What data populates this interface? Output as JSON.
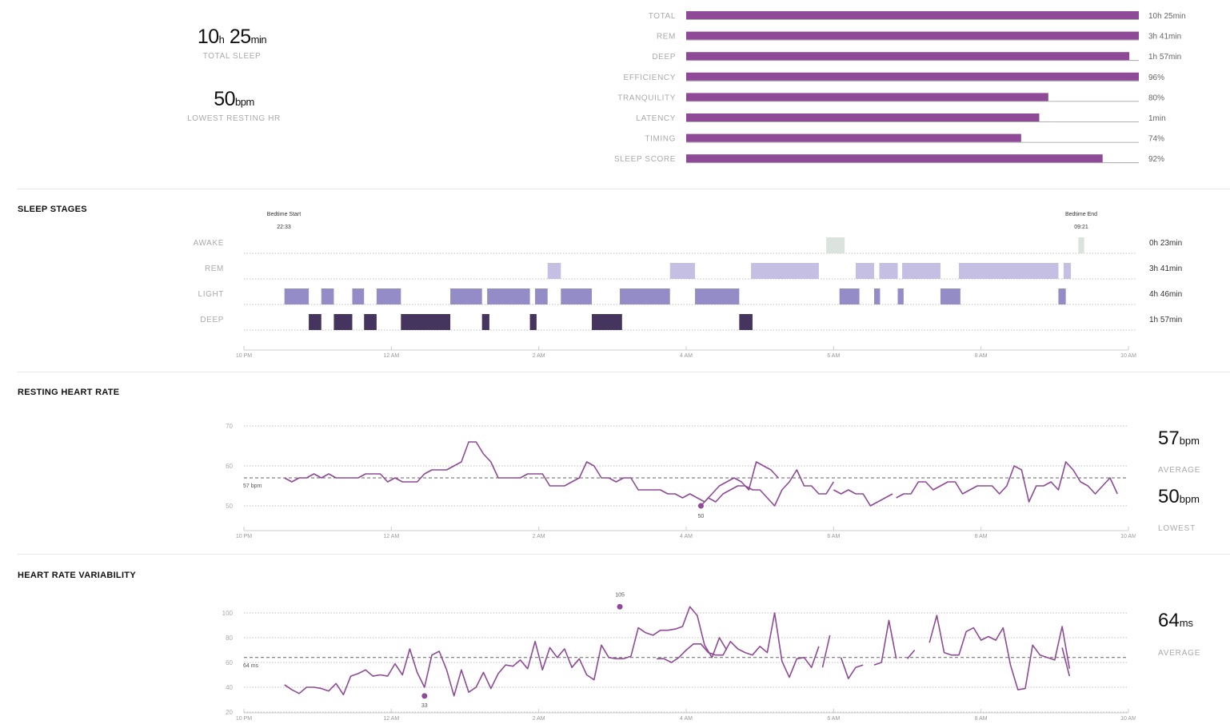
{
  "summary": {
    "total_sleep": {
      "h": "10",
      "h_unit": "h",
      "m": "25",
      "m_unit": "min",
      "label": "TOTAL SLEEP"
    },
    "lowest_hr": {
      "value": "50",
      "unit": "bpm",
      "label": "LOWEST RESTING HR"
    }
  },
  "metrics": [
    {
      "label": "TOTAL",
      "value": "10h 25min",
      "fraction": 1.0
    },
    {
      "label": "REM",
      "value": "3h 41min",
      "fraction": 1.0
    },
    {
      "label": "DEEP",
      "value": "1h 57min",
      "fraction": 0.979
    },
    {
      "label": "EFFICIENCY",
      "value": "96%",
      "fraction": 1.0
    },
    {
      "label": "TRANQUILITY",
      "value": "80%",
      "fraction": 0.8
    },
    {
      "label": "LATENCY",
      "value": "1min",
      "fraction": 0.78
    },
    {
      "label": "TIMING",
      "value": "74%",
      "fraction": 0.74
    },
    {
      "label": "SLEEP SCORE",
      "value": "92%",
      "fraction": 0.92
    }
  ],
  "colors": {
    "accent": "#8e4a96",
    "awake": "#dbe3de",
    "rem": "#c5c0e3",
    "light": "#948cc6",
    "deep": "#45355e",
    "grid": "#bbb",
    "muted": "#aaa"
  },
  "sleep_stages": {
    "title": "SLEEP STAGES",
    "bedtime_start_label": "Bedtime Start",
    "bedtime_start": "22:33",
    "bedtime_end_label": "Bedtime End",
    "bedtime_end": "09:21",
    "stages": [
      {
        "name": "AWAKE",
        "duration": "0h 23min"
      },
      {
        "name": "REM",
        "duration": "3h 41min"
      },
      {
        "name": "LIGHT",
        "duration": "4h 46min"
      },
      {
        "name": "DEEP",
        "duration": "1h 57min"
      }
    ]
  },
  "time_ticks": [
    "10 PM",
    "12 AM",
    "2 AM",
    "4 AM",
    "6 AM",
    "8 AM",
    "10 AM"
  ],
  "resting_hr": {
    "title": "RESTING HEART RATE",
    "avg_value": "57",
    "avg_unit": "bpm",
    "avg_label": "AVERAGE",
    "low_value": "50",
    "low_unit": "bpm",
    "low_label": "LOWEST",
    "avg_line_label": "57 bpm",
    "min_label": "50"
  },
  "hrv": {
    "title": "HEART RATE VARIABILITY",
    "avg_value": "64",
    "avg_unit": "ms",
    "avg_label": "AVERAGE",
    "avg_line_label": "64 ms",
    "max_label": "105",
    "min_label": "33"
  },
  "chart_data": [
    {
      "type": "bar",
      "title": "SLEEP STAGES",
      "x_unit": "hours after 22:00",
      "x_range": [
        0,
        12
      ],
      "categories": [
        "AWAKE",
        "REM",
        "LIGHT",
        "DEEP"
      ],
      "segments": {
        "AWAKE": [
          [
            7.9,
            8.15
          ],
          [
            11.32,
            11.4
          ]
        ],
        "REM": [
          [
            4.12,
            4.3
          ],
          [
            5.78,
            6.12
          ],
          [
            6.88,
            7.8
          ],
          [
            8.3,
            8.55
          ],
          [
            8.62,
            8.87
          ],
          [
            8.93,
            9.45
          ],
          [
            9.7,
            11.05
          ],
          [
            11.12,
            11.22
          ]
        ],
        "LIGHT": [
          [
            0.55,
            0.88
          ],
          [
            1.05,
            1.22
          ],
          [
            1.47,
            1.63
          ],
          [
            1.8,
            2.13
          ],
          [
            2.8,
            3.23
          ],
          [
            3.3,
            3.88
          ],
          [
            3.95,
            4.12
          ],
          [
            4.3,
            4.72
          ],
          [
            5.1,
            5.78
          ],
          [
            6.12,
            6.72
          ],
          [
            8.08,
            8.35
          ],
          [
            8.55,
            8.63
          ],
          [
            8.87,
            8.95
          ],
          [
            9.45,
            9.72
          ],
          [
            11.05,
            11.15
          ]
        ],
        "DEEP": [
          [
            0.88,
            1.05
          ],
          [
            1.22,
            1.47
          ],
          [
            1.63,
            1.8
          ],
          [
            2.13,
            2.8
          ],
          [
            3.23,
            3.33
          ],
          [
            3.88,
            3.97
          ],
          [
            4.72,
            5.13
          ],
          [
            6.72,
            6.9
          ]
        ]
      },
      "xticks": [
        "10 PM",
        "12 AM",
        "2 AM",
        "4 AM",
        "6 AM",
        "8 AM",
        "10 AM"
      ]
    },
    {
      "type": "line",
      "title": "RESTING HEART RATE",
      "x_unit": "hours after 22:00",
      "x_range": [
        0,
        12
      ],
      "ylim": [
        50,
        70
      ],
      "yticks": [
        50,
        60,
        70
      ],
      "average": 57,
      "min_point": {
        "x": 6.2,
        "y": 50
      },
      "segments": [
        {
          "x_start": 0.55,
          "step": 0.1,
          "values": [
            57,
            56,
            57,
            57,
            58,
            57,
            58,
            57,
            57,
            57,
            57,
            58,
            58,
            58,
            56,
            57,
            56,
            56,
            56,
            58,
            59,
            59,
            59,
            60,
            61,
            66,
            66,
            63,
            61,
            57,
            57,
            57,
            57,
            58,
            58,
            58,
            55,
            55,
            55,
            56,
            57,
            61,
            60,
            57,
            57,
            56,
            57,
            57,
            54,
            54,
            54,
            54,
            53,
            53,
            52,
            53,
            52,
            51,
            53,
            55,
            56,
            57,
            56,
            54,
            61,
            60,
            59,
            57
          ]
        },
        {
          "x_start": 6.2,
          "step": 0.1,
          "values": [
            50,
            52,
            51,
            53,
            54,
            55,
            55,
            54,
            54,
            52,
            50,
            54,
            56,
            59,
            55,
            55,
            53,
            53,
            56
          ]
        },
        {
          "x_start": 8.0,
          "step": 0.1,
          "values": [
            54,
            53,
            54,
            53,
            53,
            50,
            51,
            52,
            53
          ]
        },
        {
          "x_start": 8.85,
          "step": 0.1,
          "values": [
            52,
            53,
            53,
            56,
            56,
            54,
            55,
            56,
            56,
            53,
            54,
            55,
            55,
            55,
            53,
            55,
            60,
            59,
            51,
            55,
            55,
            56,
            54,
            61,
            59,
            56,
            55,
            53,
            55,
            57,
            53
          ]
        }
      ],
      "xticks": [
        "10 PM",
        "12 AM",
        "2 AM",
        "4 AM",
        "6 AM",
        "8 AM",
        "10 AM"
      ]
    },
    {
      "type": "line",
      "title": "HEART RATE VARIABILITY",
      "x_unit": "hours after 22:00",
      "x_range": [
        0,
        12
      ],
      "ylim": [
        20,
        100
      ],
      "yticks": [
        20,
        40,
        60,
        80,
        100
      ],
      "average": 64,
      "max_point": {
        "x": 5.1,
        "y": 105
      },
      "min_point": {
        "x": 2.45,
        "y": 33
      },
      "segments": [
        {
          "x_start": 0.55,
          "step": 0.1,
          "values": [
            42,
            38,
            35,
            40,
            40,
            39,
            37,
            43,
            34,
            49,
            51,
            54,
            49,
            50,
            49,
            59,
            50,
            71,
            52,
            40,
            66,
            69,
            54,
            33,
            54,
            36,
            40,
            52,
            39,
            51,
            58,
            57,
            62,
            55,
            77,
            54,
            72,
            64,
            71,
            56,
            63,
            50,
            46,
            74,
            64,
            63,
            63,
            65,
            88,
            84,
            82,
            86,
            86,
            87,
            89,
            105,
            98,
            74,
            64,
            80,
            70
          ]
        },
        {
          "x_start": 5.6,
          "step": 0.1,
          "values": [
            63,
            63,
            60,
            64,
            70,
            75,
            75,
            68,
            66,
            66,
            77,
            71,
            68,
            66,
            73,
            68,
            100,
            61,
            48,
            63,
            64,
            56,
            73
          ]
        },
        {
          "x_start": 7.85,
          "step": 0.1,
          "values": [
            56,
            82
          ]
        },
        {
          "x_start": 8.1,
          "step": 0.1,
          "values": [
            64,
            47,
            56,
            58
          ]
        },
        {
          "x_start": 8.55,
          "step": 0.1,
          "values": [
            58,
            60,
            94,
            63
          ]
        },
        {
          "x_start": 9.0,
          "step": 0.1,
          "values": [
            63,
            70
          ]
        },
        {
          "x_start": 9.3,
          "step": 0.1,
          "values": [
            76,
            98,
            68,
            66,
            66,
            85,
            88,
            78,
            81,
            78,
            88,
            58,
            38,
            39,
            74,
            66,
            64,
            62,
            89,
            55
          ]
        },
        {
          "x_start": 11.1,
          "step": 0.1,
          "values": [
            72,
            49
          ]
        }
      ],
      "xticks": [
        "10 PM",
        "12 AM",
        "2 AM",
        "4 AM",
        "6 AM",
        "8 AM",
        "10 AM"
      ]
    }
  ]
}
